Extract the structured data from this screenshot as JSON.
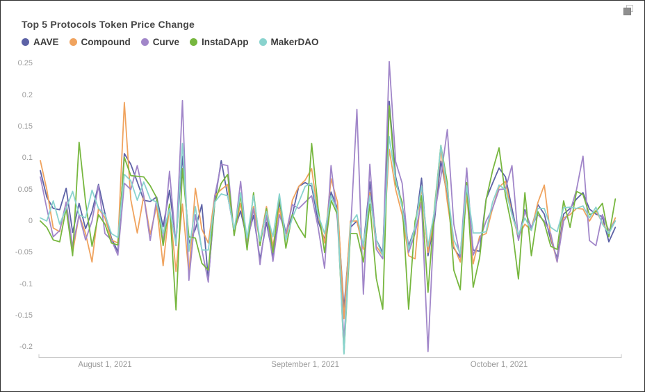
{
  "header": {
    "export_icon": "copy-export-icon"
  },
  "chart_data": {
    "type": "line",
    "title": "Top 5 Protocols Token Price Change",
    "xlabel": "",
    "ylabel": "",
    "grid": false,
    "legend_position": "top-left",
    "x_start_date": "2021-07-22",
    "x_interval": "daily",
    "n_points": 90,
    "ylim": [
      -0.215,
      0.255
    ],
    "y_ticks": [
      0.25,
      0.2,
      0.15,
      0.1,
      0.05,
      0,
      -0.05,
      -0.1,
      -0.15,
      -0.2
    ],
    "y_tick_labels": [
      "0.25",
      "0.2",
      "0.15",
      "0.1",
      "0.05",
      "0",
      "-0.05",
      "-0.1",
      "-0.15",
      "-0.2"
    ],
    "x_ticks": [
      {
        "label": "August 1, 2021",
        "day_index": 10
      },
      {
        "label": "September 1, 2021",
        "day_index": 41
      },
      {
        "label": "October 1, 2021",
        "day_index": 71
      }
    ],
    "axis_color": "#c9c9c9",
    "series": [
      {
        "name": "AAVE",
        "color": "#5d62a6",
        "values": [
          0.08,
          0.038,
          0.02,
          0.018,
          0.052,
          -0.018,
          0.028,
          -0.012,
          0.015,
          0.058,
          0.012,
          -0.027,
          -0.049,
          0.107,
          0.09,
          0.062,
          0.033,
          0.031,
          0.038,
          -0.009,
          0.049,
          -0.034,
          0.103,
          -0.035,
          -0.013,
          0.026,
          -0.093,
          0.03,
          0.096,
          0.04,
          -0.015,
          0.016,
          -0.03,
          0.009,
          -0.061,
          -0.002,
          -0.057,
          0.03,
          -0.02,
          0.01,
          0.055,
          0.061,
          0.055,
          0.0,
          -0.03,
          0.046,
          0.02,
          -0.14,
          -0.01,
          0.0,
          -0.04,
          0.062,
          -0.03,
          -0.05,
          0.19,
          0.07,
          0.025,
          -0.04,
          -0.01,
          0.068,
          -0.055,
          0.0,
          0.095,
          0.04,
          -0.043,
          -0.058,
          0.051,
          -0.046,
          -0.048,
          0.035,
          0.06,
          0.084,
          0.07,
          0.02,
          -0.029,
          0.018,
          -0.012,
          0.026,
          0.011,
          -0.03,
          -0.059,
          0.011,
          0.02,
          0.035,
          0.045,
          0.019,
          0.011,
          0.007,
          -0.033,
          -0.01
        ]
      },
      {
        "name": "Compound",
        "color": "#f0a35e",
        "values": [
          0.096,
          0.05,
          -0.011,
          -0.017,
          0.03,
          -0.05,
          0.01,
          -0.02,
          -0.065,
          0.02,
          0.005,
          -0.03,
          -0.035,
          0.188,
          0.034,
          -0.019,
          0.04,
          -0.021,
          0.024,
          -0.071,
          0.024,
          -0.08,
          0.027,
          -0.084,
          0.052,
          -0.013,
          -0.035,
          0.04,
          0.05,
          0.058,
          -0.02,
          0.028,
          -0.035,
          0.023,
          -0.032,
          0.023,
          -0.04,
          0.02,
          -0.03,
          0.033,
          0.055,
          0.065,
          0.083,
          0.01,
          -0.035,
          0.067,
          0.03,
          -0.155,
          0.0,
          0.0,
          -0.045,
          0.045,
          -0.04,
          -0.055,
          0.114,
          0.05,
          0.01,
          -0.055,
          -0.06,
          0.055,
          -0.05,
          0.01,
          0.115,
          0.03,
          -0.04,
          -0.065,
          0.041,
          -0.068,
          -0.024,
          -0.02,
          0.02,
          0.054,
          0.063,
          0.01,
          -0.025,
          -0.005,
          -0.015,
          0.029,
          0.057,
          -0.025,
          -0.065,
          0.005,
          0.01,
          0.02,
          0.019,
          0.0,
          0.017,
          -0.003,
          -0.02,
          0.005
        ]
      },
      {
        "name": "Curve",
        "color": "#a186c9",
        "values": [
          0.07,
          0.02,
          -0.025,
          -0.015,
          0.03,
          -0.04,
          0.01,
          -0.03,
          0.0,
          0.056,
          -0.02,
          -0.03,
          -0.054,
          0.06,
          0.05,
          0.088,
          0.04,
          -0.031,
          0.035,
          -0.034,
          0.079,
          -0.039,
          0.191,
          -0.094,
          0.01,
          -0.045,
          -0.097,
          0.04,
          0.09,
          0.088,
          -0.023,
          0.063,
          -0.04,
          0.02,
          -0.069,
          0.009,
          -0.064,
          0.01,
          -0.02,
          0.026,
          0.02,
          0.03,
          0.04,
          -0.01,
          -0.075,
          0.088,
          0.0,
          -0.19,
          -0.02,
          0.177,
          -0.116,
          0.09,
          -0.045,
          -0.06,
          0.253,
          0.094,
          0.06,
          -0.05,
          -0.02,
          0.03,
          -0.207,
          0.01,
          0.07,
          0.145,
          -0.005,
          -0.057,
          0.084,
          -0.054,
          -0.03,
          0.0,
          0.02,
          0.05,
          0.051,
          0.088,
          -0.031,
          0.015,
          -0.01,
          0.01,
          0.0,
          -0.02,
          -0.065,
          0.0,
          0.015,
          0.05,
          0.103,
          -0.031,
          -0.039,
          0.01,
          -0.015,
          0.0
        ]
      },
      {
        "name": "InstaDApp",
        "color": "#77b73f",
        "values": [
          0.0,
          -0.01,
          -0.03,
          -0.033,
          0.02,
          -0.055,
          0.125,
          0.03,
          -0.04,
          0.01,
          -0.005,
          -0.035,
          -0.038,
          0.101,
          0.072,
          0.071,
          0.07,
          0.056,
          0.037,
          -0.039,
          0.027,
          -0.141,
          0.083,
          -0.025,
          -0.027,
          -0.067,
          -0.078,
          0.03,
          0.06,
          0.074,
          -0.023,
          0.041,
          -0.046,
          0.045,
          -0.039,
          0.02,
          -0.05,
          0.04,
          -0.043,
          0.01,
          -0.01,
          -0.026,
          0.123,
          0.02,
          -0.05,
          0.033,
          0.01,
          -0.21,
          -0.02,
          -0.02,
          -0.065,
          0.027,
          -0.091,
          -0.14,
          0.183,
          0.06,
          0.03,
          -0.14,
          0.0,
          0.04,
          -0.113,
          0.02,
          0.12,
          0.06,
          -0.078,
          -0.109,
          0.061,
          -0.105,
          -0.058,
          0.034,
          0.08,
          0.116,
          0.04,
          -0.01,
          -0.092,
          0.045,
          -0.055,
          0.015,
          -0.003,
          -0.04,
          -0.045,
          0.032,
          -0.01,
          0.047,
          0.042,
          0.01,
          0.015,
          0.028,
          -0.025,
          0.035
        ]
      },
      {
        "name": "MakerDAO",
        "color": "#89d3ce",
        "values": [
          0.005,
          0.0,
          0.032,
          -0.005,
          0.02,
          0.047,
          0.01,
          0.005,
          0.049,
          0.02,
          0.01,
          -0.02,
          -0.026,
          0.074,
          0.064,
          0.033,
          0.062,
          0.035,
          0.03,
          -0.02,
          0.02,
          -0.037,
          0.123,
          -0.048,
          0.023,
          -0.046,
          -0.046,
          0.03,
          0.043,
          0.04,
          -0.013,
          0.045,
          -0.027,
          0.04,
          -0.032,
          0.015,
          -0.025,
          0.043,
          -0.03,
          0.005,
          0.03,
          0.055,
          0.06,
          0.01,
          -0.02,
          0.04,
          0.015,
          -0.211,
          -0.005,
          0.01,
          -0.04,
          0.04,
          -0.03,
          -0.055,
          0.134,
          0.065,
          0.022,
          -0.045,
          -0.01,
          0.055,
          -0.04,
          0.015,
          0.12,
          0.05,
          -0.03,
          -0.052,
          0.056,
          -0.019,
          -0.019,
          -0.017,
          0.03,
          0.057,
          0.05,
          0.01,
          -0.022,
          0.005,
          -0.015,
          0.02,
          0.02,
          -0.01,
          -0.017,
          0.021,
          0.022,
          0.02,
          0.024,
          0.005,
          0.022,
          -0.005,
          -0.02,
          0.0
        ]
      }
    ]
  }
}
